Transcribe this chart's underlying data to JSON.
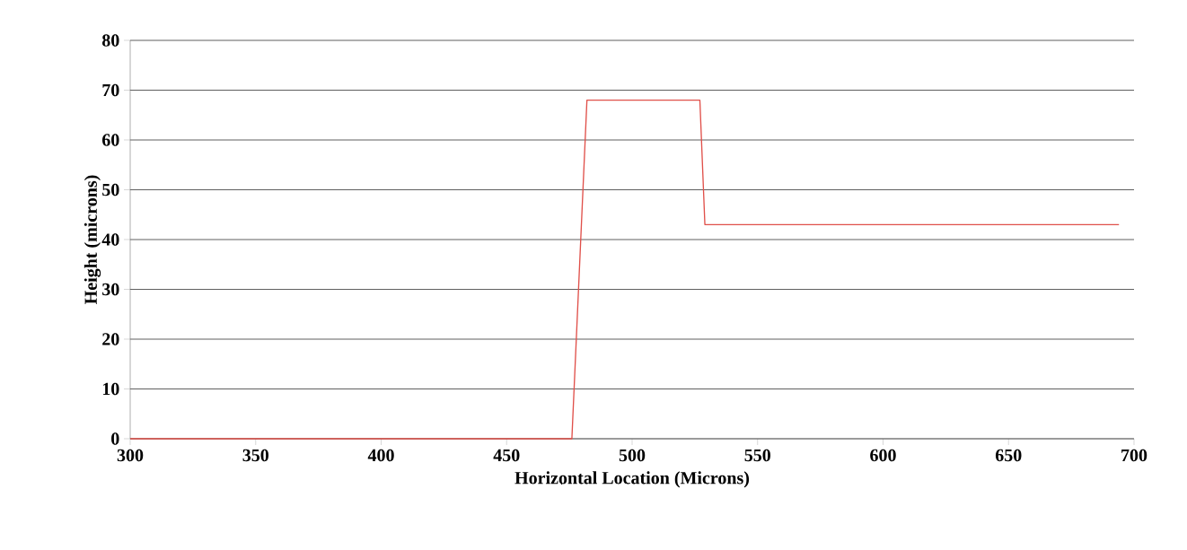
{
  "chart_data": {
    "type": "line",
    "xlabel": "Horizontal Location (Microns)",
    "ylabel": "Height (microns)",
    "x": [
      300,
      476,
      482,
      527,
      529,
      694
    ],
    "series": [
      {
        "color": "#e0504a",
        "values": [
          0,
          0,
          68,
          68,
          43,
          43
        ]
      }
    ],
    "xlim": [
      300,
      700
    ],
    "ylim": [
      0,
      80
    ],
    "xticks": [
      300,
      350,
      400,
      450,
      500,
      550,
      600,
      650,
      700
    ],
    "yticks": [
      0,
      10,
      20,
      30,
      40,
      50,
      60,
      70,
      80
    ],
    "grid": "y",
    "marker": "none",
    "line_style": "solid"
  }
}
